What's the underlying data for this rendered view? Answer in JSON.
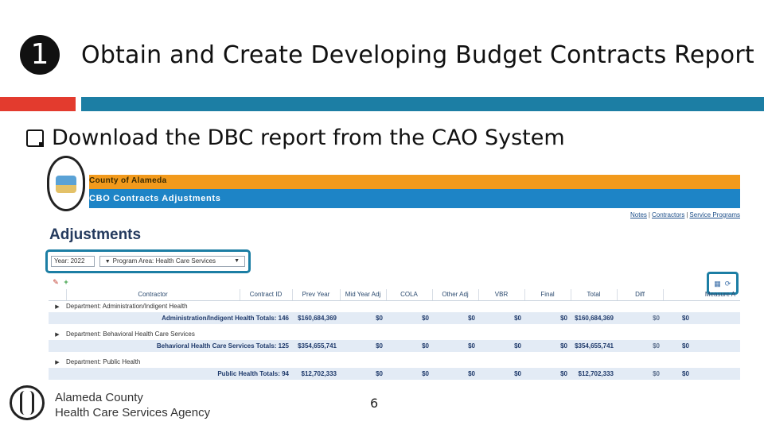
{
  "slide": {
    "step_number": "1",
    "title": "Obtain and Create Developing Budget Contracts Report",
    "bullet": "Download the DBC report from the CAO System",
    "page_number": "6",
    "colors": {
      "accent_red": "#e33b2e",
      "accent_teal": "#1c7ea4"
    }
  },
  "app": {
    "org_name": "County of Alameda",
    "app_title": "CBO Contracts Adjustments",
    "links": [
      "Notes",
      "Contractors",
      "Service Programs"
    ],
    "page_heading": "Adjustments",
    "filters": {
      "year": "Year: 2022",
      "program_area": "Program Area: Health Care Services"
    },
    "grid": {
      "columns": [
        "",
        "Contractor",
        "Contract ID",
        "Prev Year",
        "Mid Year Adj",
        "COLA",
        "Other Adj",
        "VBR",
        "Final",
        "Total",
        "Diff",
        "Measure A"
      ],
      "departments": [
        {
          "name": "Department: Administration/Indigent Health",
          "total_label": "Administration/Indigent Health Totals: 146",
          "values": [
            "$160,684,369",
            "$0",
            "$0",
            "$0",
            "$0",
            "$0",
            "$160,684,369",
            "$0",
            "$0"
          ]
        },
        {
          "name": "Department: Behavioral Health Care Services",
          "total_label": "Behavioral Health Care Services Totals: 125",
          "values": [
            "$354,655,741",
            "$0",
            "$0",
            "$0",
            "$0",
            "$0",
            "$354,655,741",
            "$0",
            "$0"
          ]
        },
        {
          "name": "Department: Public Health",
          "total_label": "Public Health Totals: 94",
          "values": [
            "$12,702,333",
            "$0",
            "$0",
            "$0",
            "$0",
            "$0",
            "$12,702,333",
            "$0",
            "$0"
          ]
        }
      ]
    }
  },
  "footer": {
    "agency_line1": "Alameda County",
    "agency_line2": "Health Care Services Agency"
  }
}
